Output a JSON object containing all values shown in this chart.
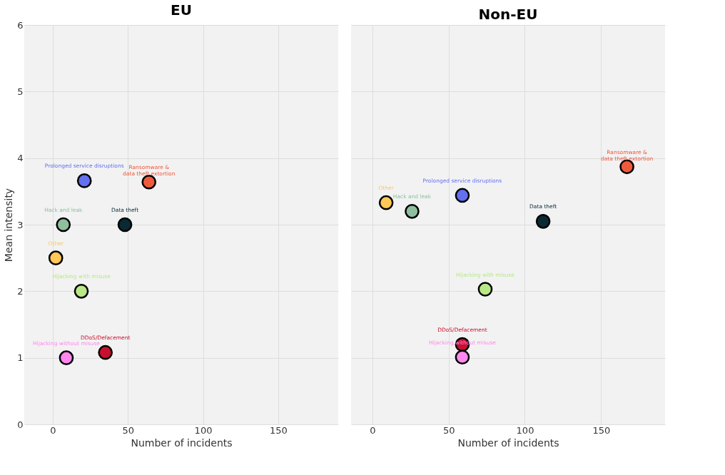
{
  "chart_data": [
    {
      "type": "scatter",
      "title": "EU",
      "xlabel": "Number of incidents",
      "ylabel": "Mean intensity",
      "xlim": [
        -19,
        190
      ],
      "xticks": [
        0,
        50,
        100,
        150
      ],
      "ylim": [
        0,
        6
      ],
      "yticks": [
        0,
        1,
        2,
        3,
        4,
        5,
        6
      ],
      "grid": true,
      "legend": false,
      "marker": "circle",
      "series": [
        {
          "name": "Prolonged service disruptions",
          "color": "#6370f0",
          "x": [
            21
          ],
          "values": [
            3.66
          ]
        },
        {
          "name": "Ransomware &\ndata theft extortion",
          "color": "#ef5a3c",
          "x": [
            64
          ],
          "values": [
            3.64
          ]
        },
        {
          "name": "Hack and leak",
          "color": "#8fbf9f",
          "x": [
            7
          ],
          "values": [
            3.0
          ]
        },
        {
          "name": "Data theft",
          "color": "#0a2a33",
          "x": [
            48
          ],
          "values": [
            3.0
          ]
        },
        {
          "name": "Other",
          "color": "#ffc857",
          "x": [
            2
          ],
          "values": [
            2.5
          ]
        },
        {
          "name": "Hijacking with misuse",
          "color": "#b8e986",
          "x": [
            19
          ],
          "values": [
            2.0
          ]
        },
        {
          "name": "Hijacking without misuse",
          "color": "#ff88ee",
          "x": [
            9
          ],
          "values": [
            1.0
          ]
        },
        {
          "name": "DDoS/Defacement",
          "color": "#c8102e",
          "x": [
            35
          ],
          "values": [
            1.08
          ]
        }
      ]
    },
    {
      "type": "scatter",
      "title": "Non-EU",
      "xlabel": "Number of incidents",
      "xlim": [
        -14,
        192
      ],
      "xticks": [
        0,
        50,
        100,
        150
      ],
      "ylim": [
        0,
        6
      ],
      "yticks": [
        0,
        1,
        2,
        3,
        4,
        5,
        6
      ],
      "tick_labels": "x",
      "grid": true,
      "legend": false,
      "marker": "circle",
      "series": [
        {
          "name": "Ransomware &\ndata theft extortion",
          "color": "#ef5a3c",
          "x": [
            167
          ],
          "values": [
            3.87
          ]
        },
        {
          "name": "Other",
          "color": "#ffc857",
          "x": [
            9
          ],
          "values": [
            3.33
          ]
        },
        {
          "name": "Hack and leak",
          "color": "#8fbf9f",
          "x": [
            26
          ],
          "values": [
            3.2
          ]
        },
        {
          "name": "Prolonged service disruptions",
          "color": "#6370f0",
          "x": [
            59
          ],
          "values": [
            3.44
          ]
        },
        {
          "name": "Data theft",
          "color": "#0a2a33",
          "x": [
            112
          ],
          "values": [
            3.05
          ]
        },
        {
          "name": "Hijacking with misuse",
          "color": "#b8e986",
          "x": [
            74
          ],
          "values": [
            2.03
          ]
        },
        {
          "name": "DDoS/Defacement",
          "color": "#c8102e",
          "x": [
            59
          ],
          "values": [
            1.2
          ]
        },
        {
          "name": "Hijacking without misuse",
          "color": "#ff88ee",
          "x": [
            59
          ],
          "values": [
            1.01
          ]
        }
      ]
    }
  ]
}
